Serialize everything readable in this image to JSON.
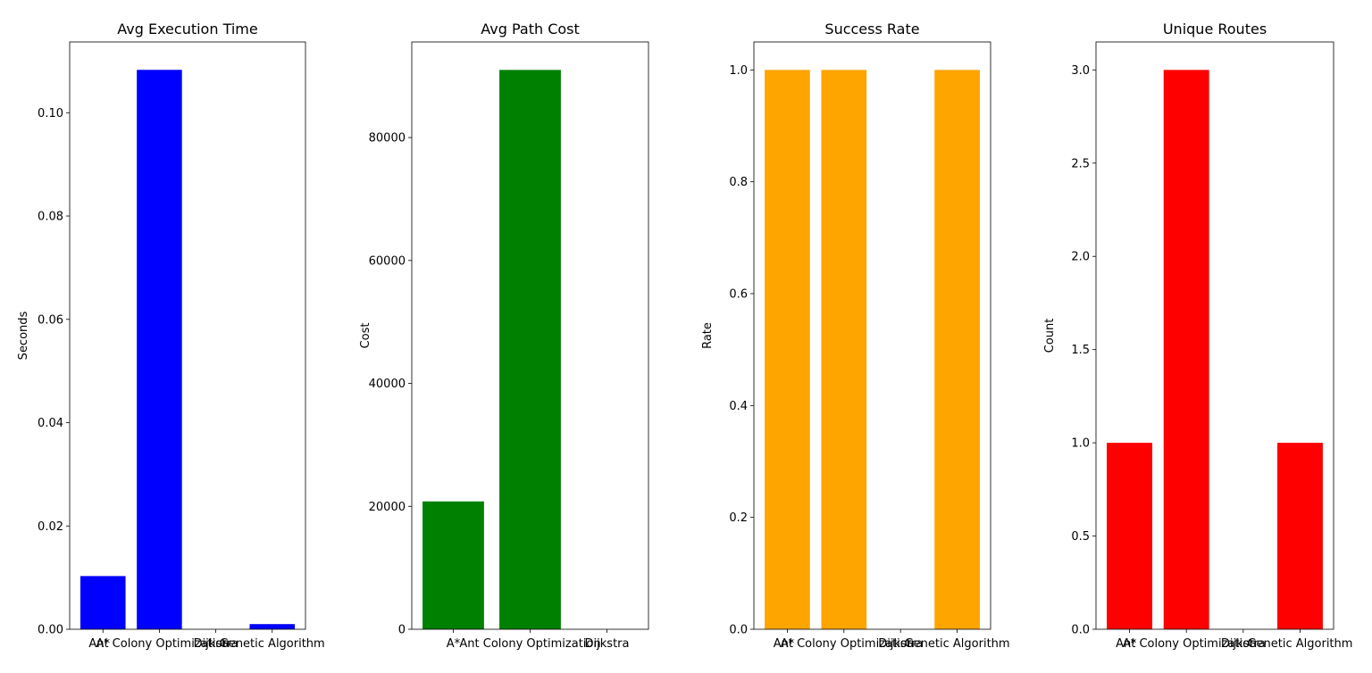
{
  "chart_data": [
    {
      "type": "bar",
      "title": "Avg Execution Time",
      "xlabel": "",
      "ylabel": "Seconds",
      "categories": [
        "A*",
        "Ant Colony Optimization",
        "Dijkstra",
        "Genetic Algorithm"
      ],
      "values": [
        0.0103,
        0.1083,
        0.0,
        0.001
      ],
      "ylim": [
        0,
        0.1137
      ],
      "yticks": [
        0.0,
        0.02,
        0.04,
        0.06,
        0.08,
        0.1
      ],
      "ytick_labels": [
        "0.00",
        "0.02",
        "0.04",
        "0.06",
        "0.08",
        "0.10"
      ],
      "color": "#0000ff",
      "grid": false
    },
    {
      "type": "bar",
      "title": "Avg Path Cost",
      "xlabel": "",
      "ylabel": "Cost",
      "categories": [
        "A*",
        "Ant Colony Optimization",
        "Dijkstra"
      ],
      "values": [
        20800,
        91000,
        0
      ],
      "ylim": [
        0,
        95550
      ],
      "yticks": [
        0,
        20000,
        40000,
        60000,
        80000
      ],
      "ytick_labels": [
        "0",
        "20000",
        "40000",
        "60000",
        "80000"
      ],
      "color": "#008000",
      "grid": false
    },
    {
      "type": "bar",
      "title": "Success Rate",
      "xlabel": "",
      "ylabel": "Rate",
      "categories": [
        "A*",
        "Ant Colony Optimization",
        "Dijkstra",
        "Genetic Algorithm"
      ],
      "values": [
        1.0,
        1.0,
        0.0,
        1.0
      ],
      "ylim": [
        0,
        1.05
      ],
      "yticks": [
        0.0,
        0.2,
        0.4,
        0.6,
        0.8,
        1.0
      ],
      "ytick_labels": [
        "0.0",
        "0.2",
        "0.4",
        "0.6",
        "0.8",
        "1.0"
      ],
      "color": "#ffa500",
      "grid": false
    },
    {
      "type": "bar",
      "title": "Unique Routes",
      "xlabel": "",
      "ylabel": "Count",
      "categories": [
        "A*",
        "Ant Colony Optimization",
        "Dijkstra",
        "Genetic Algorithm"
      ],
      "values": [
        1,
        3,
        0,
        1
      ],
      "ylim": [
        0,
        3.15
      ],
      "yticks": [
        0.0,
        0.5,
        1.0,
        1.5,
        2.0,
        2.5,
        3.0
      ],
      "ytick_labels": [
        "0.0",
        "0.5",
        "1.0",
        "1.5",
        "2.0",
        "2.5",
        "3.0"
      ],
      "color": "#ff0000",
      "grid": false
    }
  ]
}
